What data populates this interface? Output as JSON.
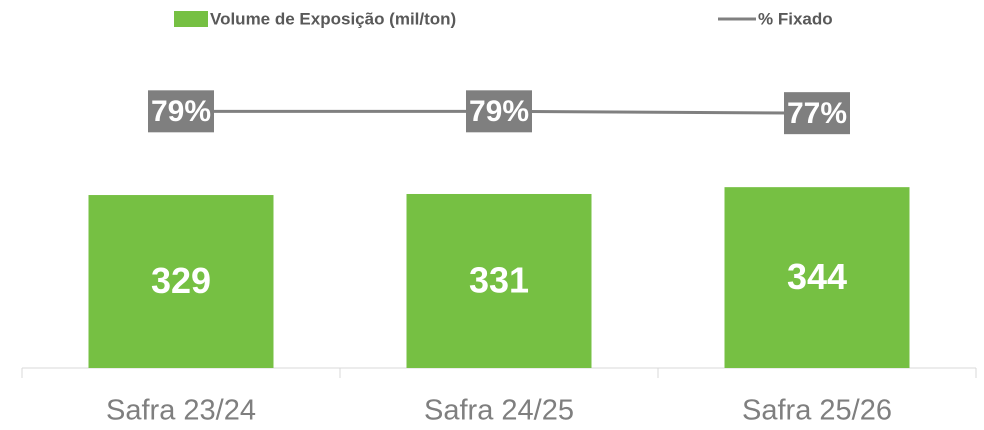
{
  "chart_data": {
    "type": "bar",
    "categories": [
      "Safra 23/24",
      "Safra 24/25",
      "Safra 25/26"
    ],
    "series": [
      {
        "name": "Volume de Exposição (mil/ton)",
        "color": "#76c043",
        "values": [
          329,
          331,
          344
        ]
      },
      {
        "name": "% Fixado",
        "type": "line",
        "axis": "y2",
        "color": "#808080",
        "values": [
          79,
          79,
          77
        ],
        "value_labels": [
          "79%",
          "79%",
          "77%"
        ]
      }
    ],
    "ylim": [
      0,
      700
    ],
    "y2lim": [
      -200,
      200
    ],
    "legend": "top"
  }
}
